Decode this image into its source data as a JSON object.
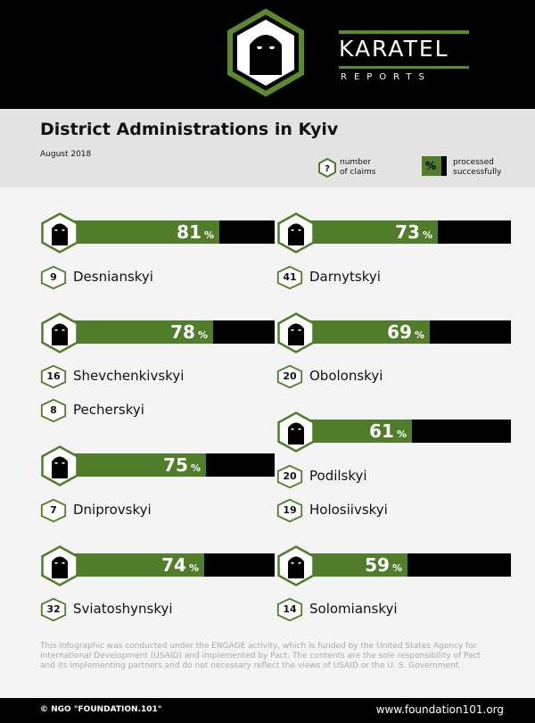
{
  "brand": {
    "name": "KARATEL",
    "sub": "REPORTS"
  },
  "header": {
    "title": "District Administrations in Kyiv",
    "date": "August 2018"
  },
  "legend": {
    "claims_symbol": "?",
    "claims_label_1": "number",
    "claims_label_2": "of claims",
    "pct_symbol": "%",
    "pct_label_1": "processed",
    "pct_label_2": "successfully"
  },
  "chart_data": {
    "type": "bar",
    "title": "District Administrations in Kyiv",
    "subtitle": "August 2018",
    "value_unit": "%",
    "ylim": [
      0,
      100
    ],
    "groups": [
      {
        "percent": 81,
        "districts": [
          {
            "name": "Desnianskyi",
            "claims": 9
          }
        ]
      },
      {
        "percent": 78,
        "districts": [
          {
            "name": "Shevchenkivskyi",
            "claims": 16
          },
          {
            "name": "Pecherskyi",
            "claims": 8
          }
        ]
      },
      {
        "percent": 75,
        "districts": [
          {
            "name": "Dniprovskyi",
            "claims": 7
          }
        ]
      },
      {
        "percent": 74,
        "districts": [
          {
            "name": "Sviatoshynskyi",
            "claims": 32
          }
        ]
      },
      {
        "percent": 73,
        "districts": [
          {
            "name": "Darnytskyi",
            "claims": 41
          }
        ]
      },
      {
        "percent": 69,
        "districts": [
          {
            "name": "Obolonskyi",
            "claims": 20
          }
        ]
      },
      {
        "percent": 61,
        "districts": [
          {
            "name": "Podilskyi",
            "claims": 20
          },
          {
            "name": "Holosiivskyi",
            "claims": 19
          }
        ]
      },
      {
        "percent": 59,
        "districts": [
          {
            "name": "Solomianskyi",
            "claims": 14
          }
        ]
      }
    ]
  },
  "disclaimer": "This infographic was conducted under the ENGAGE activity, which is funded by the United States Agency for International Development (USAID) and implemented by Pact. The contents are the sole responsibility of Pact and its implementing partners and do not necessary reflect the views of USAID or the U. S. Government.",
  "footer": {
    "left": "© NGO \"FOUNDATION.101\"",
    "right": "www.foundation101.org"
  },
  "colors": {
    "accent": "#4f7d2a",
    "dark": "#000000",
    "background": "#f4f4f4",
    "band": "#e3e3e3"
  }
}
